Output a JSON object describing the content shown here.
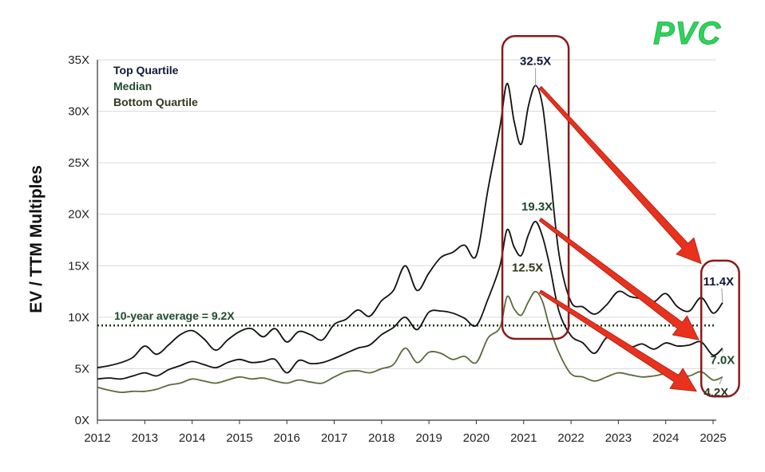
{
  "logo": {
    "text": "PVC",
    "color": "#2fd35a"
  },
  "chart_data": {
    "type": "line",
    "ylabel": "EV / TTM Multiples",
    "xlabel": "",
    "title": "",
    "ylim": [
      0,
      35
    ],
    "xlim": [
      2012,
      2025.25
    ],
    "y_ticks": [
      0,
      5,
      10,
      15,
      20,
      25,
      30,
      35
    ],
    "y_tick_labels": [
      "0X",
      "5X",
      "10X",
      "15X",
      "20X",
      "25X",
      "30X",
      "35X"
    ],
    "x_ticks": [
      2012,
      2013,
      2014,
      2015,
      2016,
      2017,
      2018,
      2019,
      2020,
      2021,
      2022,
      2023,
      2024,
      2025
    ],
    "x_tick_labels": [
      "2012",
      "2013",
      "2014",
      "2015",
      "2016",
      "2017",
      "2018",
      "2019",
      "2020",
      "2021",
      "2022",
      "2023",
      "2024",
      "2025"
    ],
    "grid": "horizontal",
    "legend_position": "top-left",
    "legend": [
      {
        "label": "Top Quartile",
        "color": "#10183a"
      },
      {
        "label": "Median",
        "color": "#1f4a2e"
      },
      {
        "label": "Bottom Quartile",
        "color": "#33381f"
      }
    ],
    "series": [
      {
        "name": "Top Quartile",
        "color": "#111111",
        "x": [
          2012.0,
          2012.25,
          2012.5,
          2012.75,
          2013.0,
          2013.25,
          2013.5,
          2013.75,
          2014.0,
          2014.25,
          2014.5,
          2014.75,
          2015.0,
          2015.25,
          2015.5,
          2015.75,
          2016.0,
          2016.25,
          2016.5,
          2016.75,
          2017.0,
          2017.25,
          2017.5,
          2017.75,
          2018.0,
          2018.25,
          2018.5,
          2018.75,
          2019.0,
          2019.25,
          2019.5,
          2019.75,
          2020.0,
          2020.25,
          2020.5,
          2020.65,
          2020.8,
          2020.95,
          2021.1,
          2021.25,
          2021.4,
          2021.55,
          2021.75,
          2022.0,
          2022.25,
          2022.5,
          2022.75,
          2023.0,
          2023.25,
          2023.5,
          2023.75,
          2024.0,
          2024.25,
          2024.5,
          2024.75,
          2025.0,
          2025.2
        ],
        "y": [
          5.1,
          5.3,
          5.6,
          6.1,
          7.2,
          6.4,
          7.3,
          8.3,
          8.7,
          7.9,
          6.8,
          7.8,
          8.6,
          8.9,
          8.1,
          8.9,
          7.6,
          8.6,
          8.3,
          7.8,
          9.3,
          9.8,
          10.7,
          10.1,
          11.6,
          12.6,
          15.0,
          12.6,
          14.3,
          15.8,
          16.3,
          17.0,
          16.0,
          22.5,
          28.5,
          32.7,
          29.0,
          26.8,
          30.5,
          32.5,
          30.5,
          24.5,
          16.0,
          11.5,
          11.0,
          10.3,
          11.2,
          12.5,
          12.0,
          11.8,
          11.5,
          12.3,
          11.0,
          10.6,
          11.9,
          10.4,
          11.4
        ]
      },
      {
        "name": "Median",
        "color": "#111111",
        "x": [
          2012.0,
          2012.25,
          2012.5,
          2012.75,
          2013.0,
          2013.25,
          2013.5,
          2013.75,
          2014.0,
          2014.25,
          2014.5,
          2014.75,
          2015.0,
          2015.25,
          2015.5,
          2015.75,
          2016.0,
          2016.25,
          2016.5,
          2016.75,
          2017.0,
          2017.25,
          2017.5,
          2017.75,
          2018.0,
          2018.25,
          2018.5,
          2018.75,
          2019.0,
          2019.25,
          2019.5,
          2019.75,
          2020.0,
          2020.25,
          2020.5,
          2020.65,
          2020.8,
          2020.95,
          2021.1,
          2021.25,
          2021.4,
          2021.55,
          2021.75,
          2022.0,
          2022.25,
          2022.5,
          2022.75,
          2023.0,
          2023.25,
          2023.5,
          2023.75,
          2024.0,
          2024.25,
          2024.5,
          2024.75,
          2025.0,
          2025.2
        ],
        "y": [
          4.0,
          4.1,
          4.0,
          4.3,
          4.6,
          4.3,
          4.9,
          5.3,
          5.7,
          5.4,
          5.1,
          5.6,
          5.9,
          5.6,
          5.7,
          5.9,
          4.6,
          5.8,
          5.5,
          5.6,
          6.0,
          6.5,
          7.0,
          7.3,
          8.3,
          9.0,
          10.0,
          8.8,
          10.5,
          10.6,
          10.4,
          9.9,
          9.2,
          11.8,
          15.0,
          18.5,
          16.8,
          16.0,
          18.0,
          19.3,
          17.8,
          15.0,
          10.5,
          8.2,
          7.5,
          6.5,
          8.0,
          7.8,
          7.1,
          7.4,
          6.9,
          7.5,
          7.2,
          7.3,
          7.6,
          6.3,
          7.0
        ]
      },
      {
        "name": "Bottom Quartile",
        "color": "#5a6b3a",
        "x": [
          2012.0,
          2012.25,
          2012.5,
          2012.75,
          2013.0,
          2013.25,
          2013.5,
          2013.75,
          2014.0,
          2014.25,
          2014.5,
          2014.75,
          2015.0,
          2015.25,
          2015.5,
          2015.75,
          2016.0,
          2016.25,
          2016.5,
          2016.75,
          2017.0,
          2017.25,
          2017.5,
          2017.75,
          2018.0,
          2018.25,
          2018.5,
          2018.75,
          2019.0,
          2019.25,
          2019.5,
          2019.75,
          2020.0,
          2020.25,
          2020.5,
          2020.65,
          2020.8,
          2020.95,
          2021.1,
          2021.25,
          2021.4,
          2021.55,
          2021.75,
          2022.0,
          2022.25,
          2022.5,
          2022.75,
          2023.0,
          2023.25,
          2023.5,
          2023.75,
          2024.0,
          2024.25,
          2024.5,
          2024.75,
          2025.0,
          2025.2
        ],
        "y": [
          3.2,
          2.9,
          2.7,
          2.8,
          2.8,
          3.0,
          3.4,
          3.6,
          4.0,
          3.8,
          3.6,
          3.9,
          4.2,
          4.0,
          4.1,
          3.8,
          3.6,
          3.9,
          3.7,
          3.6,
          4.2,
          4.7,
          4.8,
          4.6,
          5.0,
          5.4,
          7.0,
          5.6,
          6.6,
          6.5,
          5.9,
          6.2,
          5.6,
          8.0,
          9.0,
          12.0,
          10.8,
          10.2,
          11.5,
          12.5,
          11.5,
          9.0,
          6.5,
          4.5,
          4.2,
          3.8,
          4.2,
          4.6,
          4.4,
          4.2,
          4.3,
          4.5,
          4.4,
          4.3,
          4.7,
          3.9,
          4.2
        ]
      }
    ],
    "reference_line": {
      "y": 9.2,
      "label": "10-year average = 9.2X",
      "color": "#1f4a2e",
      "style": "dotted"
    },
    "annotations": [
      {
        "id": "top-peak",
        "text": "32.5X",
        "x": 2021.25,
        "y": 32.5,
        "color": "#10183a"
      },
      {
        "id": "median-peak",
        "text": "19.3X",
        "x": 2021.25,
        "y": 19.3,
        "color": "#1f4a2e"
      },
      {
        "id": "bottom-peak",
        "text": "12.5X",
        "x": 2021.25,
        "y": 12.5,
        "color": "#33381f"
      },
      {
        "id": "top-end",
        "text": "11.4X",
        "x": 2025.2,
        "y": 11.4,
        "color": "#10183a"
      },
      {
        "id": "median-end",
        "text": "7.0X",
        "x": 2025.2,
        "y": 7.0,
        "color": "#1f4a2e"
      },
      {
        "id": "bottom-end",
        "text": "4.2X",
        "x": 2025.2,
        "y": 4.2,
        "color": "#33381f"
      }
    ],
    "highlight_boxes": [
      {
        "id": "peak-box",
        "x_range": [
          2020.55,
          2021.95
        ],
        "y_range": [
          7.9,
          37.3
        ],
        "color": "#8b1a1a"
      },
      {
        "id": "end-box",
        "x_range": [
          2024.75,
          2025.55
        ],
        "y_range": [
          2.3,
          15.5
        ],
        "color": "#8b1a1a"
      }
    ],
    "arrows": [
      {
        "id": "arrow-top",
        "from": [
          2021.35,
          32.3
        ],
        "to": [
          2024.75,
          15.2
        ],
        "color": "#e8321e"
      },
      {
        "id": "arrow-median",
        "from": [
          2021.35,
          19.5
        ],
        "to": [
          2024.7,
          7.8
        ],
        "color": "#e8321e"
      },
      {
        "id": "arrow-bottom",
        "from": [
          2021.35,
          12.5
        ],
        "to": [
          2024.65,
          2.8
        ],
        "color": "#e8321e"
      }
    ]
  }
}
